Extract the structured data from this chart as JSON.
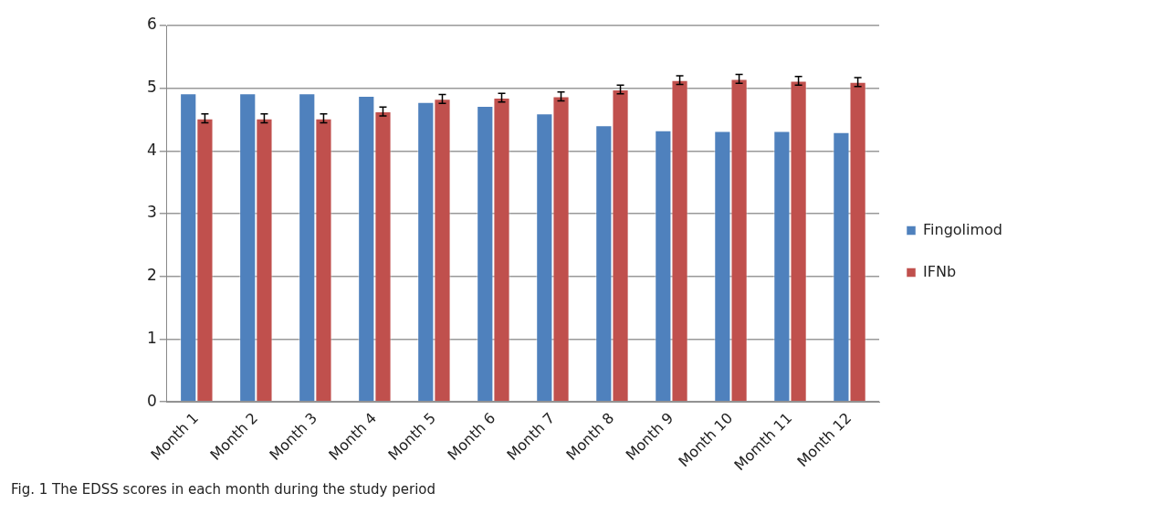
{
  "chart_data": {
    "type": "bar",
    "annotations": [
      "Fig. 1  The EDSS scores in each month during the study period"
    ],
    "categories": [
      "Month 1",
      "Month 2",
      "Month 3",
      "Month 4",
      "Month 5",
      "Month 6",
      "Month 7",
      "Month 8",
      "Month 9",
      "Month 10",
      "Momth 11",
      "Month 12"
    ],
    "series": [
      {
        "name": "Fingolimod",
        "color": "#4f81bd",
        "values": [
          4.92,
          4.92,
          4.92,
          4.88,
          4.78,
          4.72,
          4.6,
          4.41,
          4.33,
          4.32,
          4.32,
          4.3
        ]
      },
      {
        "name": "IFNb",
        "color": "#c0504d",
        "values": [
          4.52,
          4.52,
          4.52,
          4.63,
          4.83,
          4.85,
          4.87,
          4.98,
          5.13,
          5.15,
          5.12,
          5.1
        ],
        "errors": [
          0.07,
          0.07,
          0.07,
          0.07,
          0.07,
          0.07,
          0.07,
          0.07,
          0.07,
          0.07,
          0.07,
          0.07
        ]
      }
    ],
    "ylim": [
      0,
      6
    ],
    "yticks": [
      0,
      1,
      2,
      3,
      4,
      5,
      6
    ],
    "grid": "y",
    "legend": "right"
  }
}
